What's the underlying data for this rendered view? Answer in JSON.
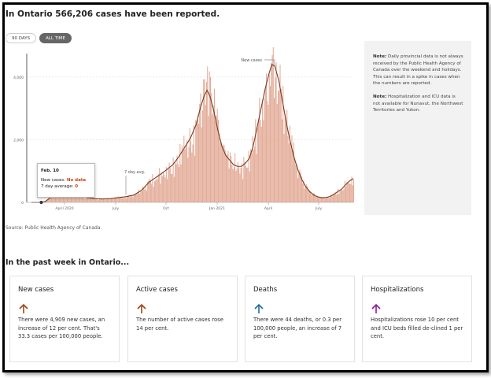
{
  "headline": "In Ontario 566,206 cases have been reported.",
  "toggle": {
    "days90": "90 DAYS",
    "all_time": "ALL TIME"
  },
  "tooltip": {
    "date": "Feb. 10",
    "new_cases_label": "New cases:",
    "new_cases_value": "No data",
    "avg_label": "7 day average:",
    "avg_value": "0"
  },
  "notes": [
    {
      "bold": "Note:",
      "text": "Daily provincial data is not always received by the Public Health Agency of Canada over the weekend and holidays. This can result in a spike in cases when the numbers are reported."
    },
    {
      "bold": "Note:",
      "text": "Hospitalization and ICU data is not available for Nunavut, the Northwest Territories and Yukon."
    }
  ],
  "source": "Source: Public Health Agency of Canada.",
  "past_week_title": "In the past week in Ontario...",
  "cards": [
    {
      "title": "New cases",
      "direction": "up",
      "color": "#a0461a",
      "text": "There were 4,909 new cases, an increase of 12 per cent. That's 33.3 cases per 100,000 people."
    },
    {
      "title": "Active cases",
      "direction": "up",
      "color": "#a0461a",
      "text": "The number of active cases rose 14 per cent."
    },
    {
      "title": "Deaths",
      "direction": "up",
      "color": "#1e6e9e",
      "text": "There were 44 deaths, or 0.3 per 100,000 people, an increase of 7 per cent."
    },
    {
      "title": "Hospitalizations",
      "direction": "up",
      "color": "#8b1a9e",
      "text": "Hospitalizations rose 10 per cent and ICU beds filled de-clined 1 per cent."
    }
  ],
  "chart_data": {
    "type": "bar",
    "bar_color": "#e3ab97",
    "line_color": "#7a3a22",
    "y_ticks": [
      0,
      2000,
      4000
    ],
    "y_tick_labels": [
      "0",
      "2,000",
      "4,000"
    ],
    "ylim": [
      0,
      4700
    ],
    "x_ticks": [
      "April 2020",
      "July",
      "Oct",
      "Jan 2021",
      "April",
      "July"
    ],
    "annotations": {
      "new_cases": "New cases",
      "seven_day": "7 day avg."
    },
    "series_name_bars": "New cases",
    "series_name_line": "7 day avg.",
    "avg_keyframes": [
      [
        0,
        0
      ],
      [
        10,
        0
      ],
      [
        14,
        30
      ],
      [
        18,
        120
      ],
      [
        24,
        300
      ],
      [
        30,
        420
      ],
      [
        36,
        380
      ],
      [
        42,
        300
      ],
      [
        48,
        220
      ],
      [
        56,
        160
      ],
      [
        64,
        120
      ],
      [
        72,
        110
      ],
      [
        80,
        120
      ],
      [
        88,
        150
      ],
      [
        96,
        180
      ],
      [
        104,
        230
      ],
      [
        112,
        380
      ],
      [
        120,
        650
      ],
      [
        128,
        820
      ],
      [
        136,
        1000
      ],
      [
        144,
        1200
      ],
      [
        150,
        1450
      ],
      [
        156,
        1750
      ],
      [
        162,
        2050
      ],
      [
        168,
        2500
      ],
      [
        172,
        3000
      ],
      [
        176,
        3400
      ],
      [
        179,
        3580
      ],
      [
        182,
        3380
      ],
      [
        186,
        2900
      ],
      [
        190,
        2300
      ],
      [
        194,
        1800
      ],
      [
        198,
        1500
      ],
      [
        202,
        1350
      ],
      [
        206,
        1200
      ],
      [
        210,
        1150
      ],
      [
        214,
        1150
      ],
      [
        218,
        1250
      ],
      [
        222,
        1400
      ],
      [
        226,
        1800
      ],
      [
        230,
        2400
      ],
      [
        234,
        3000
      ],
      [
        238,
        3600
      ],
      [
        242,
        4100
      ],
      [
        245,
        4400
      ],
      [
        248,
        4350
      ],
      [
        252,
        3900
      ],
      [
        256,
        3200
      ],
      [
        260,
        2500
      ],
      [
        264,
        1900
      ],
      [
        268,
        1400
      ],
      [
        272,
        1000
      ],
      [
        276,
        700
      ],
      [
        280,
        480
      ],
      [
        284,
        330
      ],
      [
        288,
        230
      ],
      [
        292,
        175
      ],
      [
        296,
        150
      ],
      [
        300,
        155
      ],
      [
        304,
        185
      ],
      [
        308,
        250
      ],
      [
        312,
        340
      ],
      [
        316,
        420
      ],
      [
        320,
        560
      ],
      [
        324,
        680
      ],
      [
        328,
        760
      ]
    ]
  }
}
